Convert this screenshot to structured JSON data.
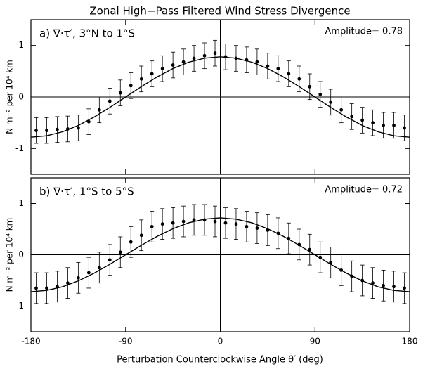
{
  "figure": {
    "title": "Zonal High−Pass Filtered Wind Stress Divergence",
    "xlabel": "Perturbation Counterclockwise Angle θ′ (deg)"
  },
  "chart_data": [
    {
      "type": "scatter",
      "panel_label": "a)  ∇·τ′, 3°N to 1°S",
      "annotation": "Amplitude= 0.78",
      "ylabel": "N m⁻² per 10⁴ km",
      "xlim": [
        -180,
        180
      ],
      "xticks": [
        -180,
        -90,
        0,
        90,
        180
      ],
      "show_xtick_labels": false,
      "ylim": [
        -1.5,
        1.5
      ],
      "yticks": [
        -1,
        0,
        1
      ],
      "color": "#000000",
      "x": [
        -175,
        -165,
        -155,
        -145,
        -135,
        -125,
        -115,
        -105,
        -95,
        -85,
        -75,
        -65,
        -55,
        -45,
        -35,
        -25,
        -15,
        -5,
        5,
        15,
        25,
        35,
        45,
        55,
        65,
        75,
        85,
        95,
        105,
        115,
        125,
        135,
        145,
        155,
        165,
        175
      ],
      "values": [
        -0.65,
        -0.65,
        -0.63,
        -0.62,
        -0.6,
        -0.48,
        -0.25,
        -0.08,
        0.08,
        0.22,
        0.35,
        0.45,
        0.55,
        0.62,
        0.68,
        0.75,
        0.8,
        0.85,
        0.78,
        0.75,
        0.72,
        0.68,
        0.6,
        0.55,
        0.45,
        0.35,
        0.2,
        0.05,
        -0.1,
        -0.25,
        -0.38,
        -0.45,
        -0.5,
        -0.55,
        -0.55,
        -0.6
      ],
      "errors": [
        0.25,
        0.25,
        0.25,
        0.25,
        0.25,
        0.25,
        0.25,
        0.25,
        0.25,
        0.25,
        0.25,
        0.25,
        0.25,
        0.25,
        0.25,
        0.25,
        0.25,
        0.25,
        0.25,
        0.25,
        0.25,
        0.25,
        0.25,
        0.25,
        0.25,
        0.25,
        0.25,
        0.25,
        0.25,
        0.25,
        0.25,
        0.25,
        0.25,
        0.25,
        0.25,
        0.25
      ],
      "curve": {
        "x": [
          -180,
          -165,
          -150,
          -135,
          -120,
          -105,
          -90,
          -75,
          -60,
          -45,
          -30,
          -15,
          0,
          15,
          30,
          45,
          60,
          75,
          90,
          105,
          120,
          135,
          150,
          165,
          180
        ],
        "values": [
          -0.78,
          -0.753,
          -0.675,
          -0.552,
          -0.39,
          -0.202,
          0,
          0.202,
          0.39,
          0.552,
          0.675,
          0.753,
          0.78,
          0.753,
          0.675,
          0.552,
          0.39,
          0.202,
          0,
          -0.202,
          -0.39,
          -0.552,
          -0.675,
          -0.753,
          -0.78
        ]
      }
    },
    {
      "type": "scatter",
      "panel_label": "b)  ∇·τ′, 1°S to 5°S",
      "annotation": "Amplitude= 0.72",
      "ylabel": "N m⁻² per 10⁴ km",
      "xlim": [
        -180,
        180
      ],
      "xticks": [
        -180,
        -90,
        0,
        90,
        180
      ],
      "show_xtick_labels": true,
      "ylim": [
        -1.5,
        1.5
      ],
      "yticks": [
        -1,
        0,
        1
      ],
      "color": "#000000",
      "x": [
        -175,
        -165,
        -155,
        -145,
        -135,
        -125,
        -115,
        -105,
        -95,
        -85,
        -75,
        -65,
        -55,
        -45,
        -35,
        -25,
        -15,
        -5,
        5,
        15,
        25,
        35,
        45,
        55,
        65,
        75,
        85,
        95,
        105,
        115,
        125,
        135,
        145,
        155,
        165,
        175
      ],
      "values": [
        -0.65,
        -0.65,
        -0.62,
        -0.55,
        -0.45,
        -0.35,
        -0.25,
        -0.1,
        0.05,
        0.25,
        0.38,
        0.55,
        0.6,
        0.62,
        0.65,
        0.68,
        0.68,
        0.65,
        0.62,
        0.6,
        0.55,
        0.52,
        0.48,
        0.42,
        0.32,
        0.2,
        0.1,
        -0.05,
        -0.15,
        -0.3,
        -0.42,
        -0.5,
        -0.55,
        -0.6,
        -0.62,
        -0.65
      ],
      "errors": [
        0.3,
        0.3,
        0.3,
        0.3,
        0.3,
        0.3,
        0.3,
        0.3,
        0.3,
        0.3,
        0.3,
        0.3,
        0.3,
        0.3,
        0.3,
        0.3,
        0.3,
        0.3,
        0.3,
        0.3,
        0.3,
        0.3,
        0.3,
        0.3,
        0.3,
        0.3,
        0.3,
        0.3,
        0.3,
        0.3,
        0.3,
        0.3,
        0.3,
        0.3,
        0.3,
        0.3
      ],
      "curve": {
        "x": [
          -180,
          -165,
          -150,
          -135,
          -120,
          -105,
          -90,
          -75,
          -60,
          -45,
          -30,
          -15,
          0,
          15,
          30,
          45,
          60,
          75,
          90,
          105,
          120,
          135,
          150,
          165,
          180
        ],
        "values": [
          -0.72,
          -0.695,
          -0.624,
          -0.509,
          -0.36,
          -0.186,
          0,
          0.186,
          0.36,
          0.509,
          0.624,
          0.695,
          0.72,
          0.695,
          0.624,
          0.509,
          0.36,
          0.186,
          0,
          -0.186,
          -0.36,
          -0.509,
          -0.624,
          -0.695,
          -0.72
        ]
      }
    }
  ]
}
